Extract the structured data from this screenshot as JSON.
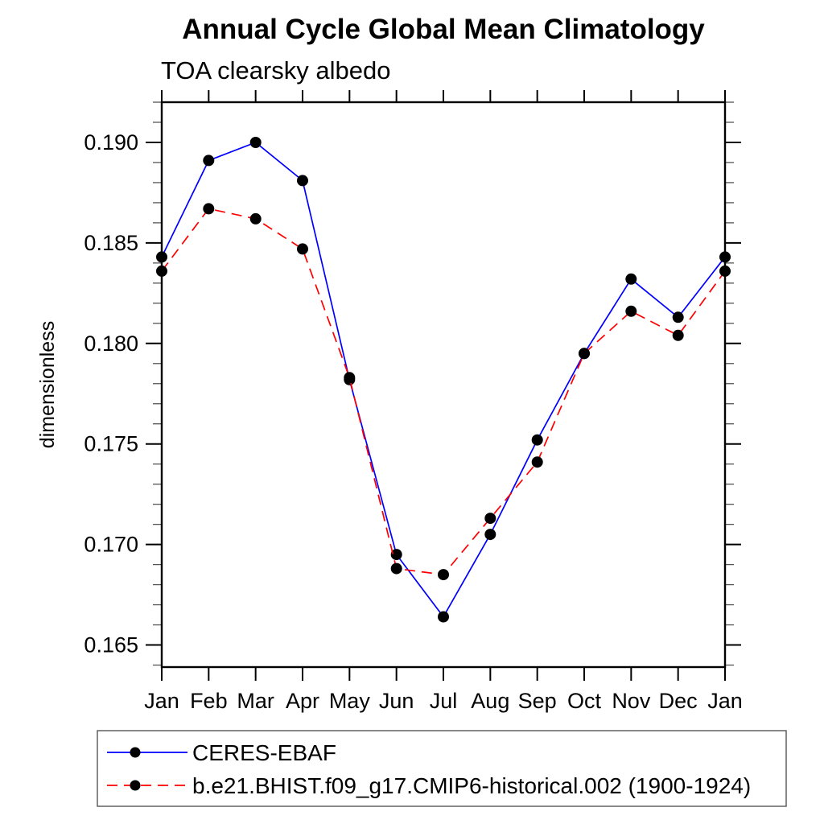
{
  "chart_data": {
    "type": "line",
    "title": "Annual Cycle Global Mean Climatology",
    "subtitle": "TOA clearsky albedo",
    "xlabel": "",
    "ylabel": "dimensionless",
    "categories": [
      "Jan",
      "Feb",
      "Mar",
      "Apr",
      "May",
      "Jun",
      "Jul",
      "Aug",
      "Sep",
      "Oct",
      "Nov",
      "Dec",
      "Jan"
    ],
    "series": [
      {
        "name": "CERES-EBAF",
        "color": "#0000ff",
        "line_style": "solid",
        "marker": "filled-circle",
        "marker_color": "#000000",
        "values": [
          0.1843,
          0.1891,
          0.19,
          0.1881,
          0.1782,
          0.1695,
          0.1664,
          0.1705,
          0.1752,
          0.1795,
          0.1832,
          0.1813,
          0.1843
        ]
      },
      {
        "name": "b.e21.BHIST.f09_g17.CMIP6-historical.002 (1900-1924)",
        "color": "#ff0000",
        "line_style": "dashed",
        "marker": "filled-circle",
        "marker_color": "#000000",
        "values": [
          0.1836,
          0.1867,
          0.1862,
          0.1847,
          0.1783,
          0.1688,
          0.1685,
          0.1713,
          0.1741,
          0.1795,
          0.1816,
          0.1804,
          0.1836
        ]
      }
    ],
    "ylim": [
      0.1639,
      0.192
    ],
    "yticks_major": [
      0.165,
      0.17,
      0.175,
      0.18,
      0.185,
      0.19
    ],
    "ytick_labels": [
      "0.165",
      "0.170",
      "0.175",
      "0.180",
      "0.185",
      "0.190"
    ],
    "ytick_minor_step": 0.001,
    "grid": false,
    "legend_position": "bottom-left-box",
    "axis_color": "#000000",
    "background_color": "#ffffff"
  }
}
